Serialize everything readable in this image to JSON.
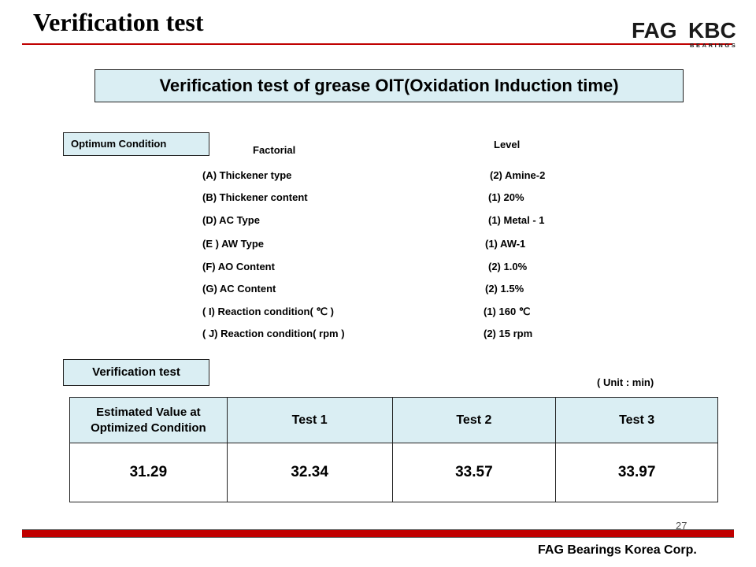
{
  "slide": {
    "title": "Verification test",
    "banner": "Verification  test of grease OIT(Oxidation Induction time)",
    "logo": {
      "left_text": "FAG",
      "right_text": "KBC",
      "sub_text": "BEARINGS",
      "colors": {
        "text": "#1a1a1a",
        "accent": "#c00000"
      }
    }
  },
  "optimum": {
    "tag": "Optimum  Condition",
    "factor_header": "Factorial",
    "level_header": "Level",
    "rows": [
      {
        "factor": "(A)  Thickener type",
        "level": "(2) Amine-2"
      },
      {
        "factor": "(B)  Thickener content",
        "level": "(1)  20%"
      },
      {
        "factor": "(D)  AC   Type",
        "level": "(1) Metal - 1"
      },
      {
        "factor": "(E ) AW Type",
        "level": "(1) AW-1"
      },
      {
        "factor": "(F)  AO Content",
        "level": "(2) 1.0%"
      },
      {
        "factor": "(G) AC  Content",
        "level": "(2)  1.5%"
      },
      {
        "factor": "( I)  Reaction condition( ℃ )",
        "level": "(1)  160 ℃"
      },
      {
        "factor": "( J)  Reaction condition( rpm )",
        "level": "(2)  15 rpm"
      }
    ]
  },
  "verification": {
    "tag": "Verification  test",
    "unit": "( Unit : min)",
    "headers": [
      "Estimated  Value at Optimized Condition",
      "Test    1",
      "Test    2",
      "Test    3"
    ],
    "values": [
      "31.29",
      "32.34",
      "33.57",
      "33.97"
    ]
  },
  "footer": {
    "page": "27",
    "company": "FAG Bearings Korea Corp."
  },
  "colors": {
    "accent": "#c00000",
    "highlight": "#daeef3"
  }
}
